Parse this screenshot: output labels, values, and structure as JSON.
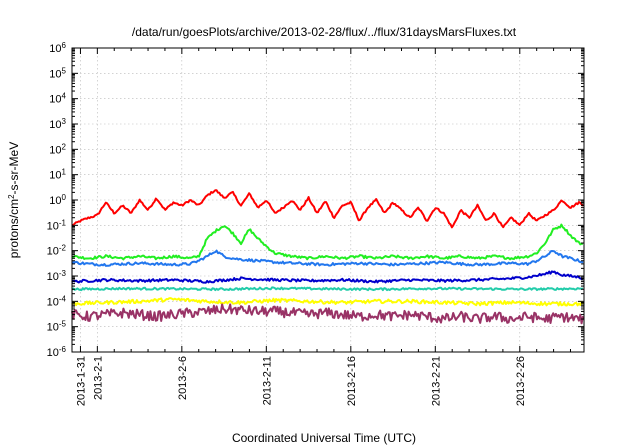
{
  "chart_data": {
    "type": "line",
    "title": "/data/run/goesPlots/archive/2013-02-28/flux/../flux/31daysMarsFluxes.txt",
    "xlabel": "Coordinated Universal Time (UTC)",
    "ylabel": "protons/cm2-s-sr-MeV",
    "ylabel_parts": {
      "base": "protons/cm",
      "sup": "2",
      "rest": "-s-sr-MeV"
    },
    "yscale": "log",
    "ylim_exp": [
      -6,
      6
    ],
    "ytick_exps": [
      "-6",
      "-5",
      "-4",
      "-3",
      "-2",
      "-1",
      "0",
      "1",
      "2",
      "3",
      "4",
      "5",
      "6"
    ],
    "xlim_days": [
      0,
      30.3
    ],
    "xticks": [
      {
        "day": 0.5,
        "label": "2013-1-31"
      },
      {
        "day": 1.5,
        "label": "2013-2-1"
      },
      {
        "day": 6.5,
        "label": "2013-2-6"
      },
      {
        "day": 11.5,
        "label": "2013-2-11"
      },
      {
        "day": 16.5,
        "label": "2013-2-16"
      },
      {
        "day": 21.5,
        "label": "2013-2-21"
      },
      {
        "day": 26.5,
        "label": "2013-2-26"
      }
    ],
    "grid": true,
    "series": [
      {
        "color": "#ff0000",
        "x": [
          0,
          0.5,
          1,
          1.5,
          2,
          2.5,
          3,
          3.5,
          4,
          4.5,
          5,
          5.5,
          6,
          6.5,
          7,
          7.5,
          8,
          8.5,
          9,
          9.5,
          10,
          10.5,
          11,
          11.5,
          12,
          12.5,
          13,
          13.5,
          14,
          14.5,
          15,
          15.5,
          16,
          16.5,
          17,
          17.5,
          18,
          18.5,
          19,
          19.5,
          20,
          20.5,
          21,
          21.5,
          22,
          22.5,
          23,
          23.5,
          24,
          24.5,
          25,
          25.5,
          26,
          26.5,
          27,
          27.5,
          28,
          28.5,
          29,
          29.5,
          30,
          30.3
        ],
        "y": [
          0.1,
          0.15,
          0.2,
          0.25,
          0.8,
          0.3,
          0.6,
          0.3,
          1.0,
          0.4,
          1.2,
          0.4,
          0.8,
          0.6,
          1.0,
          0.6,
          1.5,
          2.5,
          1.2,
          2.0,
          0.6,
          1.8,
          0.5,
          1.0,
          0.3,
          0.5,
          1.0,
          0.4,
          1.2,
          0.3,
          0.9,
          0.2,
          0.6,
          0.8,
          0.15,
          0.5,
          1.0,
          0.3,
          0.8,
          0.4,
          0.2,
          0.5,
          0.15,
          0.5,
          0.3,
          0.08,
          0.4,
          0.2,
          0.6,
          0.15,
          0.3,
          0.08,
          0.2,
          0.1,
          0.3,
          0.15,
          0.25,
          0.4,
          1.0,
          0.5,
          0.8,
          0.6
        ]
      },
      {
        "color": "#22ee22",
        "x": [
          0,
          1,
          2,
          3,
          4,
          5,
          6,
          7,
          7.5,
          8,
          8.5,
          9,
          9.5,
          10,
          10.5,
          11,
          11.5,
          12,
          13,
          14,
          15,
          16,
          17,
          18,
          19,
          20,
          21,
          22,
          23,
          24,
          25,
          26,
          27,
          27.5,
          28,
          28.5,
          29,
          29.5,
          30,
          30.3
        ],
        "y": [
          0.006,
          0.005,
          0.006,
          0.005,
          0.006,
          0.005,
          0.006,
          0.005,
          0.006,
          0.03,
          0.06,
          0.1,
          0.05,
          0.02,
          0.07,
          0.03,
          0.015,
          0.008,
          0.006,
          0.005,
          0.006,
          0.005,
          0.006,
          0.005,
          0.006,
          0.005,
          0.006,
          0.005,
          0.006,
          0.005,
          0.006,
          0.005,
          0.006,
          0.008,
          0.02,
          0.07,
          0.1,
          0.04,
          0.02,
          0.018
        ]
      },
      {
        "color": "#2277ee",
        "x": [
          0,
          1,
          2,
          3,
          4,
          5,
          6,
          7,
          7.5,
          8,
          8.5,
          9,
          9.5,
          10,
          11,
          12,
          13,
          14,
          15,
          16,
          17,
          18,
          19,
          20,
          21,
          22,
          23,
          24,
          25,
          26,
          27,
          27.5,
          28,
          28.5,
          29,
          29.5,
          30,
          30.3
        ],
        "y": [
          0.0035,
          0.003,
          0.0028,
          0.003,
          0.0032,
          0.003,
          0.0028,
          0.003,
          0.004,
          0.006,
          0.01,
          0.006,
          0.005,
          0.0045,
          0.004,
          0.0035,
          0.0032,
          0.003,
          0.0028,
          0.003,
          0.0032,
          0.003,
          0.0028,
          0.003,
          0.0032,
          0.0035,
          0.003,
          0.0028,
          0.003,
          0.0032,
          0.003,
          0.004,
          0.006,
          0.01,
          0.006,
          0.005,
          0.004,
          0.0035
        ]
      },
      {
        "color": "#0000cc",
        "x": [
          0,
          2,
          4,
          6,
          8,
          10,
          12,
          14,
          16,
          18,
          20,
          22,
          24,
          26,
          27,
          28,
          28.5,
          29,
          30,
          30.3
        ],
        "y": [
          0.0006,
          0.0007,
          0.00065,
          0.0007,
          0.0006,
          0.0008,
          0.0007,
          0.00065,
          0.0007,
          0.0006,
          0.0007,
          0.00065,
          0.0007,
          0.0008,
          0.0009,
          0.0012,
          0.0015,
          0.0011,
          0.0009,
          0.0008
        ]
      },
      {
        "color": "#22ccaa",
        "x": [
          0,
          3,
          6,
          9,
          12,
          15,
          18,
          21,
          24,
          27,
          30.3
        ],
        "y": [
          0.0003,
          0.00032,
          0.00031,
          0.0003,
          0.00033,
          0.00031,
          0.0003,
          0.00032,
          0.00031,
          0.0003,
          0.00032
        ]
      },
      {
        "color": "#ffff00",
        "x": [
          0,
          2,
          4,
          6,
          8,
          10,
          12,
          14,
          16,
          18,
          20,
          22,
          24,
          26,
          28,
          30,
          30.3
        ],
        "y": [
          8e-05,
          9e-05,
          0.0001,
          0.00012,
          0.0001,
          9e-05,
          0.00011,
          0.0001,
          9e-05,
          0.0001,
          0.0001,
          9e-05,
          8e-05,
          9e-05,
          8e-05,
          8e-05,
          8e-05
        ]
      },
      {
        "color": "#993366",
        "x": [
          0,
          1,
          2,
          3,
          4,
          5,
          6,
          7,
          8,
          9,
          10,
          11,
          12,
          13,
          14,
          15,
          16,
          17,
          18,
          19,
          20,
          21,
          22,
          23,
          24,
          25,
          26,
          27,
          28,
          29,
          30,
          30.3
        ],
        "y": [
          3e-05,
          2.5e-05,
          3e-05,
          3.5e-05,
          3e-05,
          2.5e-05,
          3e-05,
          3.5e-05,
          4e-05,
          5e-05,
          4.5e-05,
          4e-05,
          4e-05,
          3.5e-05,
          3e-05,
          3.5e-05,
          3e-05,
          2.5e-05,
          3e-05,
          2.5e-05,
          3e-05,
          2.5e-05,
          2e-05,
          2.5e-05,
          2e-05,
          2.5e-05,
          2e-05,
          2.5e-05,
          2e-05,
          2.5e-05,
          2e-05,
          2e-05
        ]
      }
    ]
  }
}
